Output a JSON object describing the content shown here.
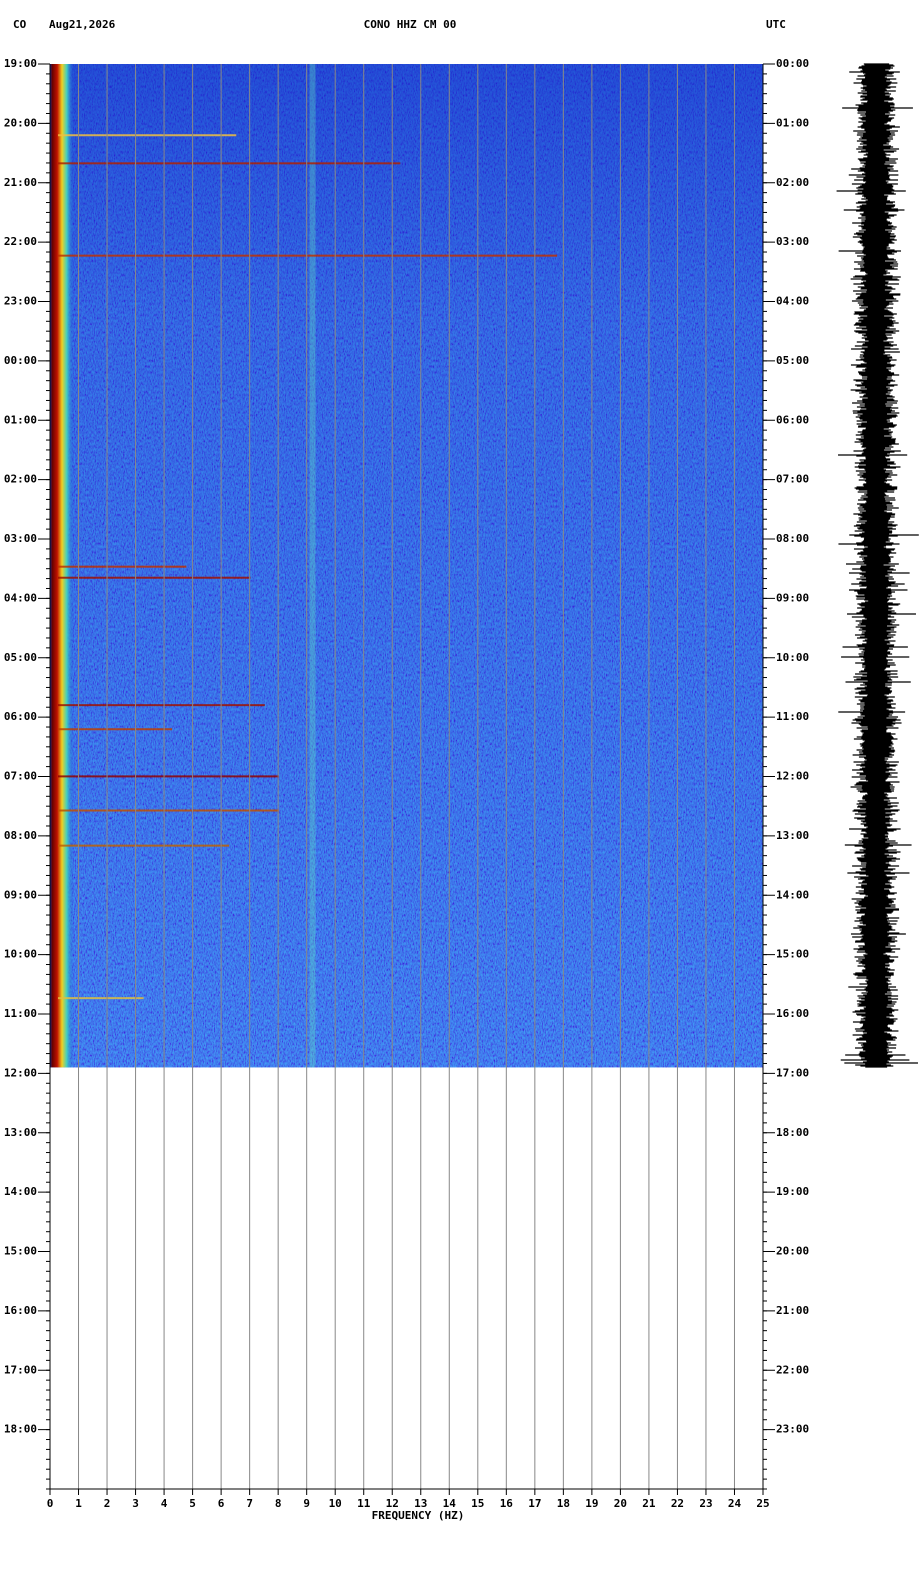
{
  "chart_data": {
    "type": "spectrogram",
    "network": "CO",
    "date": "Aug21,2026",
    "title": "CONO HHZ CM 00",
    "timezone": "UTC",
    "xlabel": "FREQUENCY (HZ)",
    "xlim": [
      0,
      25
    ],
    "xticks": [
      0,
      1,
      2,
      3,
      4,
      5,
      6,
      7,
      8,
      9,
      10,
      11,
      12,
      13,
      14,
      15,
      16,
      17,
      18,
      19,
      20,
      21,
      22,
      23,
      24,
      25
    ],
    "ylim": [
      0,
      24
    ],
    "yticks": [
      {
        "value": 0,
        "label": "19:00"
      },
      {
        "value": 1,
        "label": "20:00"
      },
      {
        "value": 2,
        "label": "21:00"
      },
      {
        "value": 3,
        "label": "22:00"
      },
      {
        "value": 4,
        "label": "23:00"
      },
      {
        "value": 5,
        "label": "00:00"
      },
      {
        "value": 6,
        "label": "01:00"
      },
      {
        "value": 7,
        "label": "02:00"
      },
      {
        "value": 8,
        "label": "03:00"
      },
      {
        "value": 9,
        "label": "04:00"
      },
      {
        "value": 10,
        "label": "05:00"
      },
      {
        "value": 11,
        "label": "06:00"
      },
      {
        "value": 12,
        "label": "07:00"
      },
      {
        "value": 13,
        "label": "08:00"
      },
      {
        "value": 14,
        "label": "09:00"
      },
      {
        "value": 15,
        "label": "10:00"
      },
      {
        "value": 16,
        "label": "11:00"
      },
      {
        "value": 17,
        "label": "12:00"
      },
      {
        "value": 18,
        "label": "13:00"
      },
      {
        "value": 19,
        "label": "14:00"
      },
      {
        "value": 20,
        "label": "15:00"
      },
      {
        "value": 21,
        "label": "16:00"
      },
      {
        "value": 22,
        "label": "17:00"
      },
      {
        "value": 23,
        "label": "18:00"
      }
    ],
    "y2ticks": [
      {
        "value": 0,
        "label": "00:00"
      },
      {
        "value": 1,
        "label": "01:00"
      },
      {
        "value": 2,
        "label": "02:00"
      },
      {
        "value": 3,
        "label": "03:00"
      },
      {
        "value": 4,
        "label": "04:00"
      },
      {
        "value": 5,
        "label": "05:00"
      },
      {
        "value": 6,
        "label": "06:00"
      },
      {
        "value": 7,
        "label": "07:00"
      },
      {
        "value": 8,
        "label": "08:00"
      },
      {
        "value": 9,
        "label": "09:00"
      },
      {
        "value": 10,
        "label": "10:00"
      },
      {
        "value": 11,
        "label": "11:00"
      },
      {
        "value": 12,
        "label": "12:00"
      },
      {
        "value": 13,
        "label": "13:00"
      },
      {
        "value": 14,
        "label": "14:00"
      },
      {
        "value": 15,
        "label": "15:00"
      },
      {
        "value": 16,
        "label": "16:00"
      },
      {
        "value": 17,
        "label": "17:00"
      },
      {
        "value": 18,
        "label": "18:00"
      },
      {
        "value": 19,
        "label": "19:00"
      },
      {
        "value": 20,
        "label": "20:00"
      },
      {
        "value": 21,
        "label": "21:00"
      },
      {
        "value": 22,
        "label": "22:00"
      },
      {
        "value": 23,
        "label": "23:00"
      }
    ],
    "data_ylim": [
      0,
      17
    ]
  }
}
